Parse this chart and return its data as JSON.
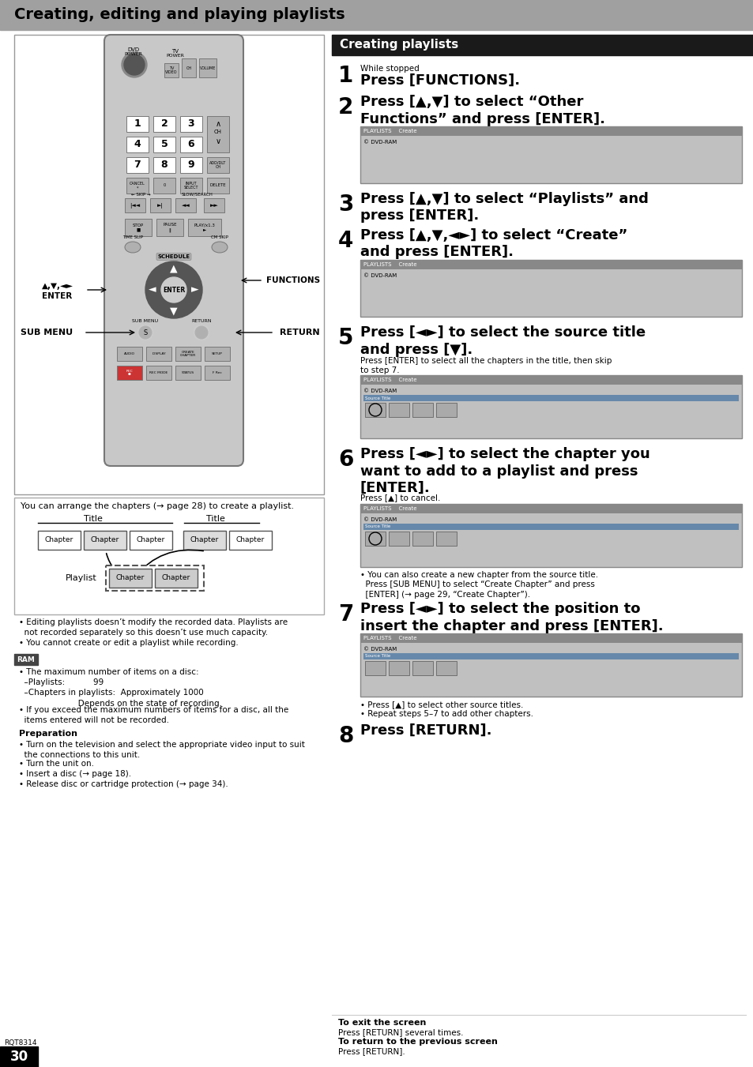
{
  "page_title": "Creating, editing and playing playlists",
  "title_bg": "#a0a0a0",
  "title_color": "#000000",
  "section_title": "Creating playlists",
  "section_title_bg": "#1a1a1a",
  "section_title_color": "#ffffff",
  "page_bg": "#ffffff",
  "page_number": "30",
  "page_number_bg": "#000000",
  "page_number_color": "#ffffff",
  "model": "RQT8314",
  "steps": [
    {
      "num": "1",
      "small_text": "While stopped",
      "main_text": "Press [FUNCTIONS].",
      "has_screen": false,
      "note": "",
      "extra_note": ""
    },
    {
      "num": "2",
      "small_text": "",
      "main_text": "Press [▲,▼] to select “Other\nFunctions” and press [ENTER].",
      "has_screen": true,
      "note": "",
      "extra_note": ""
    },
    {
      "num": "3",
      "small_text": "",
      "main_text": "Press [▲,▼] to select “Playlists” and\npress [ENTER].",
      "has_screen": false,
      "note": "",
      "extra_note": ""
    },
    {
      "num": "4",
      "small_text": "",
      "main_text": "Press [▲,▼,◄►] to select “Create”\nand press [ENTER].",
      "has_screen": true,
      "note": "",
      "extra_note": ""
    },
    {
      "num": "5",
      "small_text": "",
      "main_text": "Press [◄►] to select the source title\nand press [▼].",
      "has_screen": true,
      "note": "Press [ENTER] to select all the chapters in the title, then skip\nto step 7.",
      "extra_note": ""
    },
    {
      "num": "6",
      "small_text": "",
      "main_text": "Press [◄►] to select the chapter you\nwant to add to a playlist and press\n[ENTER].",
      "has_screen": true,
      "note": "Press [▲] to cancel.",
      "extra_note": "• You can also create a new chapter from the source title.\n  Press [SUB MENU] to select “Create Chapter” and press\n  [ENTER] (→ page 29, “Create Chapter”)."
    },
    {
      "num": "7",
      "small_text": "",
      "main_text": "Press [◄►] to select the position to\ninsert the chapter and press [ENTER].",
      "has_screen": true,
      "note": "",
      "extra_note": "• Press [▲] to select other source titles.\n• Repeat steps 5–7 to add other chapters."
    },
    {
      "num": "8",
      "small_text": "",
      "main_text": "Press [RETURN].",
      "has_screen": false,
      "note": "",
      "extra_note": ""
    }
  ],
  "footer_exit": "To exit the screen",
  "footer_exit_text": "Press [RETURN] several times.",
  "footer_prev": "To return to the previous screen",
  "footer_prev_text": "Press [RETURN].",
  "note_above_diagram": "You can arrange the chapters (→ page 28) to create a playlist.",
  "bullet_notes": [
    "• Editing playlists doesn’t modify the recorded data. Playlists are\n  not recorded separately so this doesn’t use much capacity.",
    "• You cannot create or edit a playlist while recording."
  ],
  "ram_header": "RAM",
  "ram_notes": [
    "• The maximum number of items on a disc:\n  –Playlists:           99\n  –Chapters in playlists:  Approximately 1000\n                       Depends on the state of recording.",
    "• If you exceed the maximum numbers of items for a disc, all the\n  items entered will not be recorded."
  ],
  "preparation_header": "Preparation",
  "preparation_notes": [
    "• Turn on the television and select the appropriate video input to suit\n  the connections to this unit.",
    "• Turn the unit on.",
    "• Insert a disc (→ page 18).",
    "• Release disc or cartridge protection (→ page 34)."
  ],
  "remote_body_color": "#c8c8c8",
  "remote_border_color": "#888888",
  "button_color": "#b0b0b0",
  "button_dark": "#555555",
  "button_border": "#888888"
}
